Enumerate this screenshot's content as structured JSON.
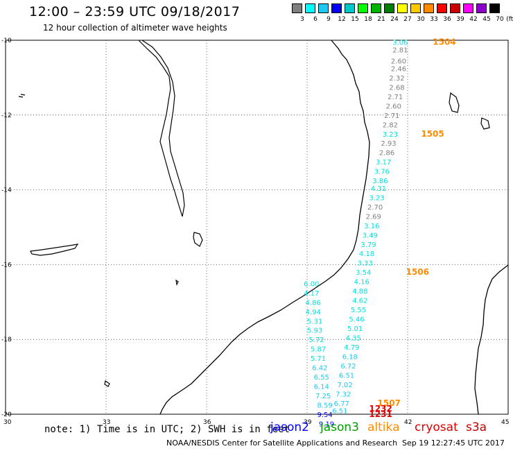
{
  "header": {
    "title": "12:00 – 23:59 UTC 09/18/2017",
    "subtitle": "12 hour collection of altimeter wave heights"
  },
  "legend": {
    "unit": "(ft)",
    "labels": [
      "3",
      "6",
      "9",
      "12",
      "15",
      "18",
      "21",
      "24",
      "27",
      "30",
      "33",
      "36",
      "39",
      "42",
      "45",
      "70"
    ],
    "colors": [
      "#808080",
      "#00ffff",
      "#1ec8f0",
      "#0000ff",
      "#00c8c8",
      "#00ff00",
      "#00b400",
      "#008000",
      "#ffff00",
      "#ffc800",
      "#ff8c00",
      "#ff0000",
      "#c80000",
      "#ff00ff",
      "#8c00c8",
      "#000000"
    ]
  },
  "axes": {
    "lat_labels": [
      "-10",
      "-12",
      "-14",
      "-16",
      "-18",
      "-20"
    ],
    "lon_labels": [
      "30",
      "33",
      "36",
      "39",
      "42",
      "45"
    ]
  },
  "tracks": [
    {
      "id": "1504",
      "color": "#ff8c00",
      "label_lon": 42.75,
      "label_lat": -10.05
    },
    {
      "id": "1505",
      "color": "#ff8c00",
      "label_lon": 42.4,
      "label_lat": -12.5
    },
    {
      "id": "1506",
      "color": "#ff8c00",
      "label_lon": 41.95,
      "label_lat": -16.2
    },
    {
      "id": "1507",
      "color": "#ff8c00",
      "label_lon": 41.1,
      "label_lat": -19.7
    },
    {
      "id": "1232",
      "color": "#e00000",
      "label_lon": 40.85,
      "label_lat": -19.85
    },
    {
      "id": "1231",
      "color": "#e00000",
      "label_lon": 40.85,
      "label_lat": -20.0
    }
  ],
  "readings": [
    {
      "v": "3.06",
      "c": "#00e0e0",
      "lon": 41.55,
      "lat": -10.05
    },
    {
      "v": "2.81",
      "c": "#808080",
      "lon": 41.55,
      "lat": -10.25
    },
    {
      "v": "2.60",
      "c": "#808080",
      "lon": 41.5,
      "lat": -10.55
    },
    {
      "v": "2.46",
      "c": "#808080",
      "lon": 41.5,
      "lat": -10.75
    },
    {
      "v": "2.32",
      "c": "#808080",
      "lon": 41.45,
      "lat": -11.0
    },
    {
      "v": "2.68",
      "c": "#808080",
      "lon": 41.45,
      "lat": -11.25
    },
    {
      "v": "2.71",
      "c": "#808080",
      "lon": 41.4,
      "lat": -11.5
    },
    {
      "v": "2.60",
      "c": "#808080",
      "lon": 41.35,
      "lat": -11.75
    },
    {
      "v": "2.71",
      "c": "#808080",
      "lon": 41.3,
      "lat": -12.0
    },
    {
      "v": "2.82",
      "c": "#808080",
      "lon": 41.25,
      "lat": -12.25
    },
    {
      "v": "3.23",
      "c": "#00e0e0",
      "lon": 41.25,
      "lat": -12.5
    },
    {
      "v": "2.93",
      "c": "#808080",
      "lon": 41.2,
      "lat": -12.75
    },
    {
      "v": "2.86",
      "c": "#808080",
      "lon": 41.15,
      "lat": -13.0
    },
    {
      "v": "3.17",
      "c": "#00e0e0",
      "lon": 41.05,
      "lat": -13.25
    },
    {
      "v": "3.76",
      "c": "#00e0e0",
      "lon": 41.0,
      "lat": -13.5
    },
    {
      "v": "3.86",
      "c": "#00e0e0",
      "lon": 40.95,
      "lat": -13.75
    },
    {
      "v": "4.31",
      "c": "#00e0e0",
      "lon": 40.9,
      "lat": -13.95
    },
    {
      "v": "3.23",
      "c": "#00e0e0",
      "lon": 40.85,
      "lat": -14.2
    },
    {
      "v": "2.70",
      "c": "#808080",
      "lon": 40.8,
      "lat": -14.45
    },
    {
      "v": "2.69",
      "c": "#808080",
      "lon": 40.75,
      "lat": -14.7
    },
    {
      "v": "3.16",
      "c": "#00e0e0",
      "lon": 40.7,
      "lat": -14.95
    },
    {
      "v": "3.49",
      "c": "#00e0e0",
      "lon": 40.65,
      "lat": -15.2
    },
    {
      "v": "3.79",
      "c": "#00e0e0",
      "lon": 40.6,
      "lat": -15.45
    },
    {
      "v": "4.18",
      "c": "#00e0e0",
      "lon": 40.55,
      "lat": -15.7
    },
    {
      "v": "3.33",
      "c": "#00e0e0",
      "lon": 40.5,
      "lat": -15.95
    },
    {
      "v": "3.54",
      "c": "#00e0e0",
      "lon": 40.45,
      "lat": -16.2
    },
    {
      "v": "4.16",
      "c": "#00e0e0",
      "lon": 40.4,
      "lat": -16.45
    },
    {
      "v": "4.88",
      "c": "#00e0e0",
      "lon": 40.35,
      "lat": -16.7
    },
    {
      "v": "4.62",
      "c": "#00e0e0",
      "lon": 40.35,
      "lat": -16.95
    },
    {
      "v": "5.55",
      "c": "#00e0e0",
      "lon": 40.3,
      "lat": -17.2
    },
    {
      "v": "5.46",
      "c": "#00e0e0",
      "lon": 40.25,
      "lat": -17.45
    },
    {
      "v": "5.01",
      "c": "#00e0e0",
      "lon": 40.2,
      "lat": -17.7
    },
    {
      "v": "4.35",
      "c": "#00e0e0",
      "lon": 40.15,
      "lat": -17.95
    },
    {
      "v": "4.79",
      "c": "#00e0e0",
      "lon": 40.1,
      "lat": -18.2
    },
    {
      "v": "6.18",
      "c": "#1ec8f0",
      "lon": 40.05,
      "lat": -18.45
    },
    {
      "v": "6.72",
      "c": "#1ec8f0",
      "lon": 40.0,
      "lat": -18.7
    },
    {
      "v": "6.51",
      "c": "#1ec8f0",
      "lon": 39.95,
      "lat": -18.95
    },
    {
      "v": "7.02",
      "c": "#1ec8f0",
      "lon": 39.9,
      "lat": -19.2
    },
    {
      "v": "7.32",
      "c": "#1ec8f0",
      "lon": 39.85,
      "lat": -19.45
    },
    {
      "v": "6.77",
      "c": "#1ec8f0",
      "lon": 39.8,
      "lat": -19.7
    },
    {
      "v": "6.51",
      "c": "#1ec8f0",
      "lon": 39.75,
      "lat": -19.9
    },
    {
      "v": "6.00",
      "c": "#00e0e0",
      "lon": 38.9,
      "lat": -16.5
    },
    {
      "v": "4.17",
      "c": "#00e0e0",
      "lon": 38.9,
      "lat": -16.75
    },
    {
      "v": "4.86",
      "c": "#00e0e0",
      "lon": 38.95,
      "lat": -17.0
    },
    {
      "v": "4.94",
      "c": "#00e0e0",
      "lon": 38.95,
      "lat": -17.25
    },
    {
      "v": "5.31",
      "c": "#00e0e0",
      "lon": 39.0,
      "lat": -17.5
    },
    {
      "v": "5.93",
      "c": "#00e0e0",
      "lon": 39.0,
      "lat": -17.75
    },
    {
      "v": "5.72",
      "c": "#00e0e0",
      "lon": 39.05,
      "lat": -18.0
    },
    {
      "v": "5.87",
      "c": "#00e0e0",
      "lon": 39.1,
      "lat": -18.25
    },
    {
      "v": "5.71",
      "c": "#00e0e0",
      "lon": 39.1,
      "lat": -18.5
    },
    {
      "v": "6.42",
      "c": "#1ec8f0",
      "lon": 39.15,
      "lat": -18.75
    },
    {
      "v": "6.55",
      "c": "#1ec8f0",
      "lon": 39.2,
      "lat": -19.0
    },
    {
      "v": "6.14",
      "c": "#1ec8f0",
      "lon": 39.2,
      "lat": -19.25
    },
    {
      "v": "7.25",
      "c": "#1ec8f0",
      "lon": 39.25,
      "lat": -19.5
    },
    {
      "v": "8.59",
      "c": "#1ec8f0",
      "lon": 39.3,
      "lat": -19.75
    },
    {
      "v": "9.54",
      "c": "#0000ff",
      "lon": 39.3,
      "lat": -20.0
    },
    {
      "v": "9.19",
      "c": "#0000ff",
      "lon": 39.35,
      "lat": -20.25
    }
  ],
  "footer": {
    "note": "note: 1) Time is in UTC; 2) SWH is in feet",
    "satellites": [
      {
        "name": "jason2",
        "color": "#0000ff"
      },
      {
        "name": "jason3",
        "color": "#00a000"
      },
      {
        "name": "altika",
        "color": "#ff8c00"
      },
      {
        "name": "cryosat",
        "color": "#e00000"
      },
      {
        "name": "s3a",
        "color": "#c80000"
      }
    ],
    "credit": "NOAA/NESDIS Center for Satellite Applications and Research",
    "timestamp": "Sep 19 12:27:45 UTC 2017"
  }
}
